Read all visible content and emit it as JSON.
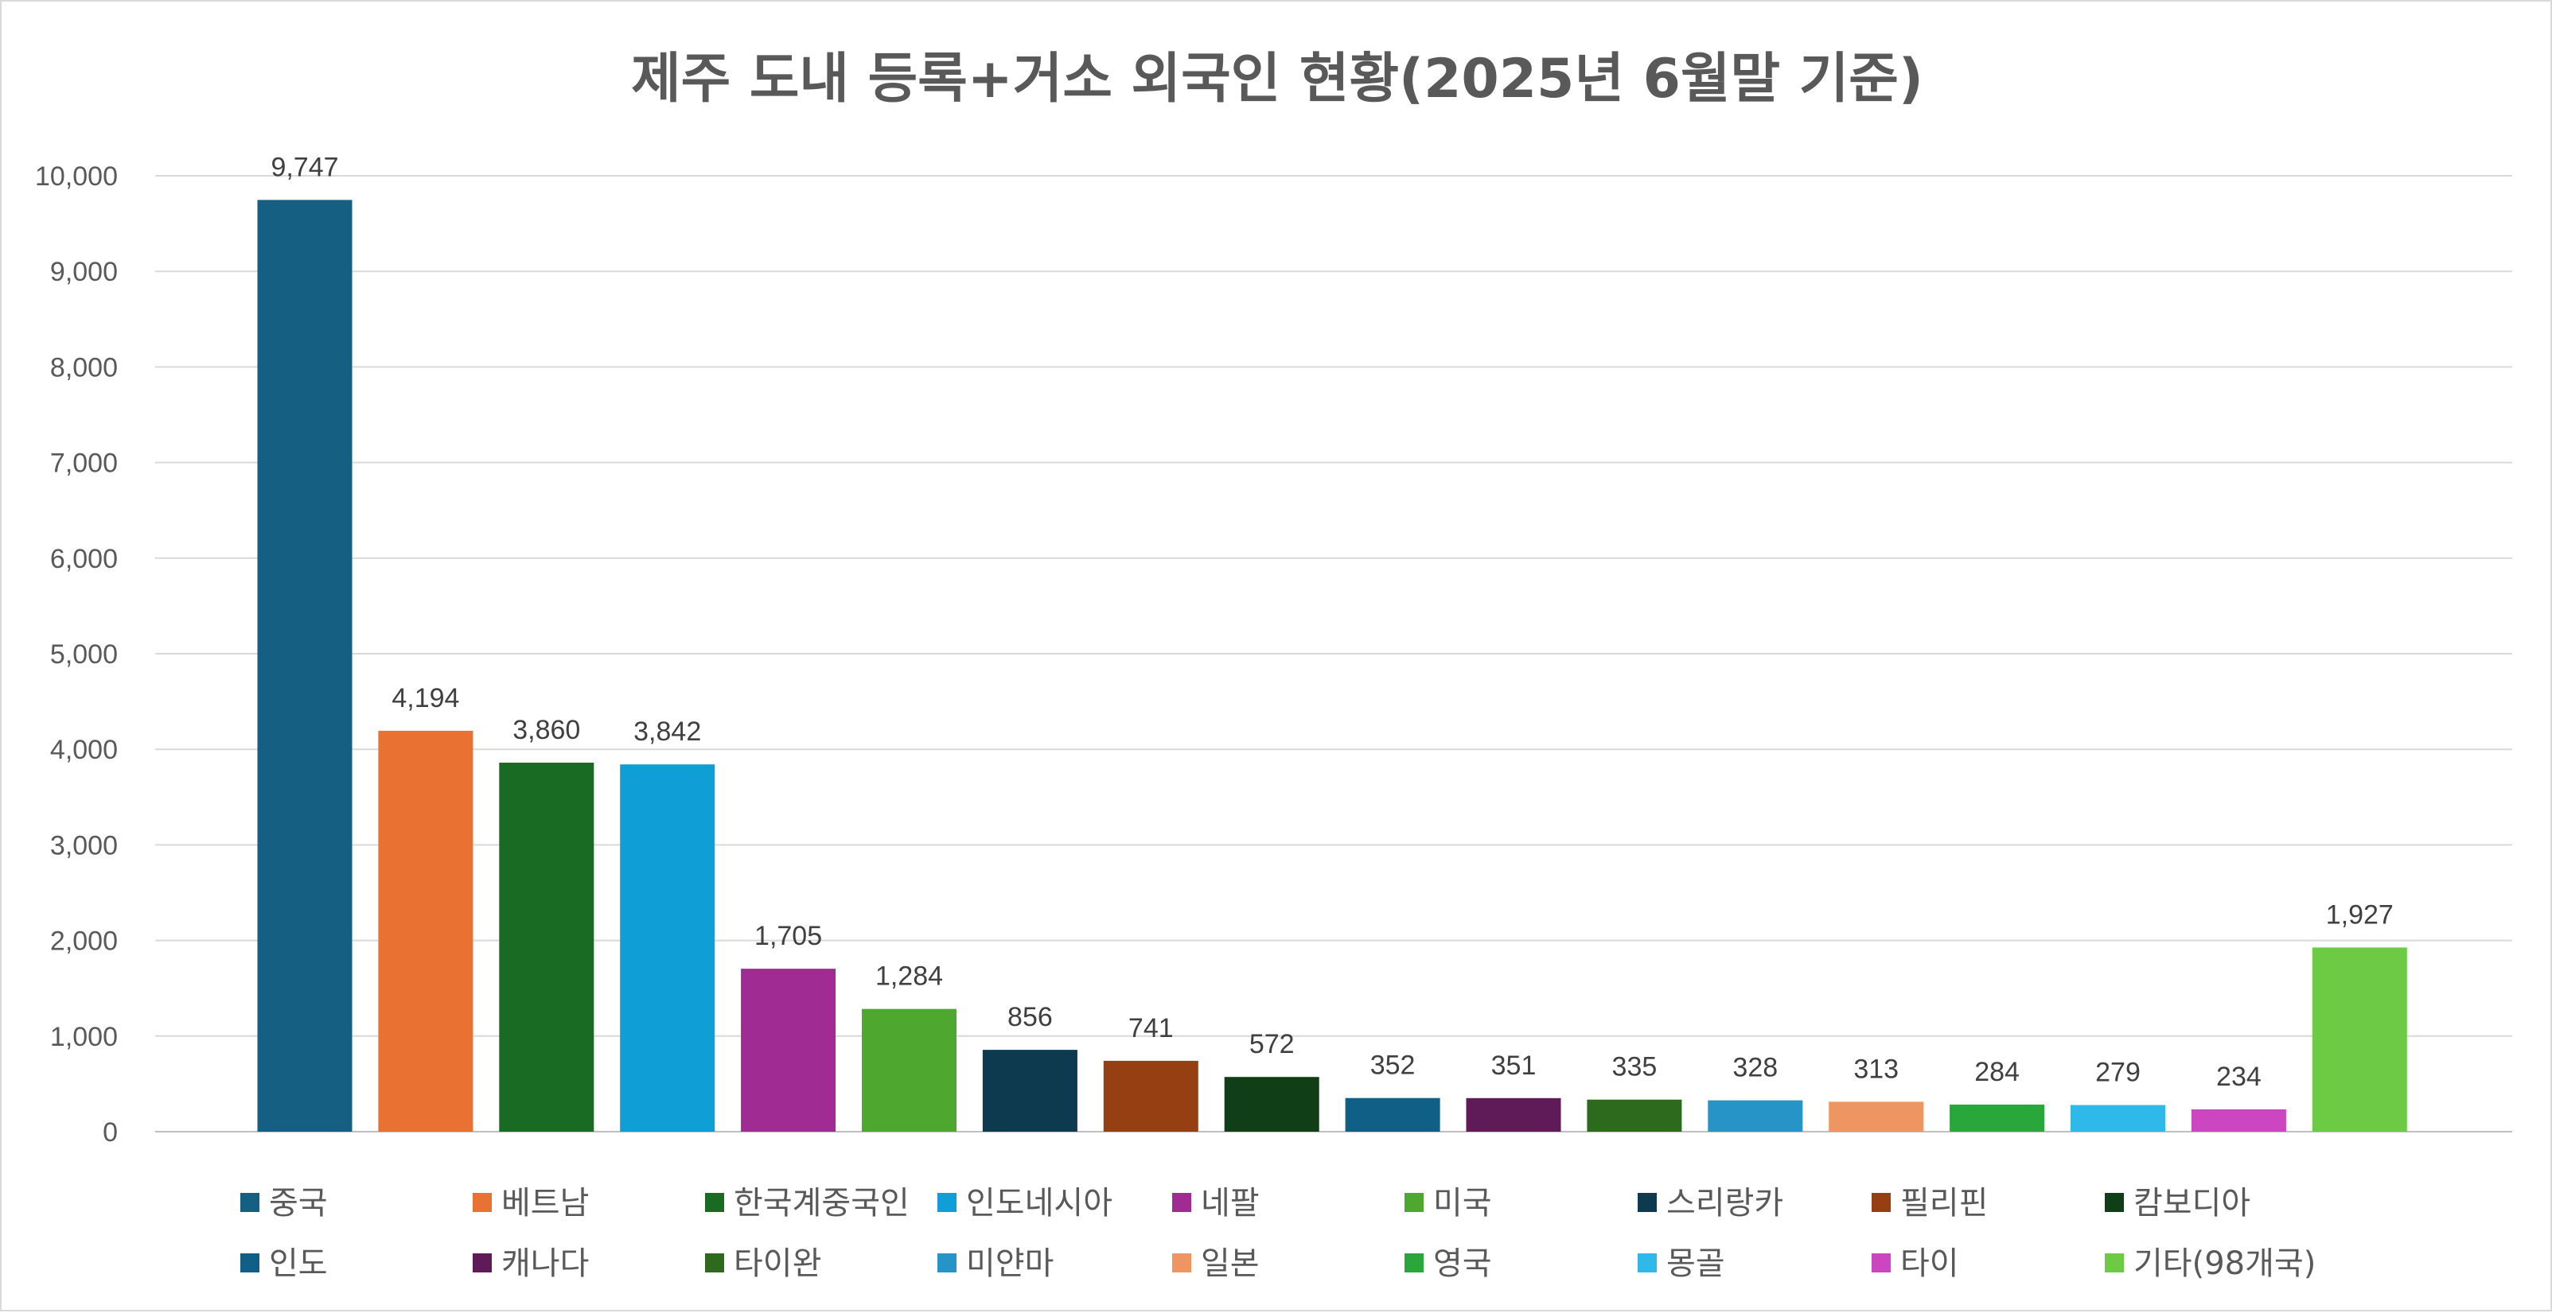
{
  "chart_data": {
    "type": "bar",
    "title": "제주 도내 등록+거소 외국인 현황(2025년 6월말 기준)",
    "xlabel": "",
    "ylabel": "",
    "ylim": [
      0,
      10000
    ],
    "yticks": [
      "0",
      "1,000",
      "2,000",
      "3,000",
      "4,000",
      "5,000",
      "6,000",
      "7,000",
      "8,000",
      "9,000",
      "10,000"
    ],
    "grid": true,
    "legend_position": "bottom",
    "categories": [
      "중국",
      "베트남",
      "한국계중국인",
      "인도네시아",
      "네팔",
      "미국",
      "스리랑카",
      "필리핀",
      "캄보디아",
      "인도",
      "캐나다",
      "타이완",
      "미얀마",
      "일본",
      "영국",
      "몽골",
      "타이",
      "기타(98개국)"
    ],
    "values": [
      9747,
      4194,
      3860,
      3842,
      1705,
      1284,
      856,
      741,
      572,
      352,
      351,
      335,
      328,
      313,
      284,
      279,
      234,
      1927
    ],
    "value_labels": [
      "9,747",
      "4,194",
      "3,860",
      "3,842",
      "1,705",
      "1,284",
      "856",
      "741",
      "572",
      "352",
      "351",
      "335",
      "328",
      "313",
      "284",
      "279",
      "234",
      "1,927"
    ],
    "colors": [
      "#156082",
      "#E97132",
      "#196B24",
      "#0F9ED5",
      "#A02B93",
      "#4EA72E",
      "#0E3A50",
      "#953F13",
      "#0F3E17",
      "#0F5F86",
      "#5F1A58",
      "#2E6A1D",
      "#2694C7",
      "#EE9561",
      "#2AA73A",
      "#2FB9EA",
      "#CC45C1",
      "#6DCA45"
    ]
  }
}
